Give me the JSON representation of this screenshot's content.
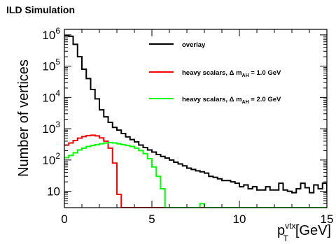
{
  "header": {
    "title": "ILD Simulation"
  },
  "chart_data": {
    "type": "line",
    "title": "ILD Simulation",
    "xlabel": {
      "main": "p",
      "sub": "T",
      "sup": "vtx",
      "unit": "[GeV]"
    },
    "ylabel": "Number of vertices",
    "xlim": [
      0,
      15
    ],
    "ylim": [
      3,
      1500000
    ],
    "yscale": "log",
    "x_ticks": [
      {
        "value": 0,
        "label": "0"
      },
      {
        "value": 5,
        "label": "5"
      },
      {
        "value": 10,
        "label": "10"
      },
      {
        "value": 15,
        "label": "15"
      }
    ],
    "y_ticks": [
      {
        "value": 10,
        "label": "10",
        "base": "10",
        "exp": ""
      },
      {
        "value": 100,
        "label": "10^2",
        "base": "10",
        "exp": "2"
      },
      {
        "value": 1000,
        "label": "10^3",
        "base": "10",
        "exp": "3"
      },
      {
        "value": 10000,
        "label": "10^4",
        "base": "10",
        "exp": "4"
      },
      {
        "value": 100000,
        "label": "10^5",
        "base": "10",
        "exp": "5"
      },
      {
        "value": 1000000,
        "label": "10^6",
        "base": "10",
        "exp": "6"
      }
    ],
    "legend_position": "top-right",
    "series": [
      {
        "name": "overlay",
        "legend": {
          "main": "overlay",
          "sub": "",
          "tail": ""
        },
        "color": "#000000",
        "bin_width": 0.25,
        "values": [
          950000,
          900000,
          500000,
          200000,
          80000,
          40000,
          18000,
          9000,
          4000,
          2400,
          1600,
          1100,
          900,
          700,
          550,
          450,
          380,
          300,
          250,
          210,
          180,
          150,
          130,
          115,
          100,
          85,
          75,
          65,
          55,
          50,
          45,
          42,
          38,
          30,
          28,
          25,
          22,
          22,
          20,
          18,
          14,
          16,
          12,
          14,
          11,
          11,
          14,
          11,
          11,
          18,
          11,
          10,
          9,
          12,
          18,
          13,
          9,
          16,
          12,
          18,
          9,
          10,
          15,
          9,
          11,
          10,
          9,
          12,
          10,
          10,
          18,
          9,
          9,
          9,
          9,
          9,
          10,
          10,
          10,
          10
        ]
      },
      {
        "name": "heavy scalars, Δ m_AH = 1.0 GeV",
        "legend": {
          "main": "heavy scalars, Δ m",
          "sub": "AH",
          "tail": " = 1.0 GeV"
        },
        "color": "#ff0000",
        "bin_width": 0.25,
        "values": [
          300,
          350,
          420,
          500,
          560,
          600,
          620,
          590,
          510,
          400,
          240,
          80,
          8,
          3,
          3,
          3,
          3,
          3,
          3,
          3,
          3,
          3,
          3,
          3,
          3,
          3,
          3,
          3,
          3,
          3,
          3,
          3
        ]
      },
      {
        "name": "heavy scalars, Δ m_AH = 2.0 GeV",
        "legend": {
          "main": "heavy scalars, Δ m",
          "sub": "AH",
          "tail": " = 2.0 GeV"
        },
        "color": "#00ff00",
        "bin_width": 0.25,
        "values": [
          120,
          140,
          170,
          210,
          240,
          270,
          290,
          310,
          330,
          350,
          360,
          350,
          330,
          310,
          290,
          270,
          240,
          200,
          160,
          110,
          60,
          30,
          12,
          3,
          3,
          3,
          3,
          3,
          3,
          3,
          3,
          4,
          3,
          3,
          3,
          3,
          3,
          3,
          3,
          3,
          3,
          3,
          3,
          3,
          3,
          3,
          3,
          3,
          3,
          3,
          3,
          3,
          3,
          3,
          3,
          3,
          3,
          3,
          3,
          3
        ]
      }
    ]
  }
}
